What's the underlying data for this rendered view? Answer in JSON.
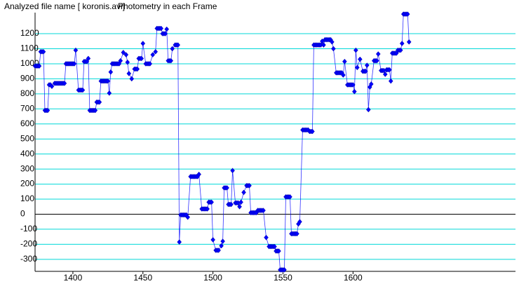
{
  "chart_data": {
    "type": "line",
    "title": "Analyzed file name [ koronis.avi]",
    "subtitle": "Photometry in each Frame",
    "color": "#0000ff",
    "grid": true,
    "xlim": [
      1373,
      1716
    ],
    "xticks": [
      1400,
      1450,
      1500,
      1550,
      1600
    ],
    "ylim": [
      -380,
      1340
    ],
    "yticks": [
      -300,
      -200,
      -100,
      0,
      100,
      200,
      300,
      400,
      500,
      600,
      700,
      800,
      900,
      1000,
      1100,
      1200
    ],
    "x": [
      1373,
      1374,
      1375,
      1376,
      1377,
      1378,
      1379,
      1380,
      1381,
      1382,
      1383,
      1384,
      1385,
      1387,
      1388,
      1389,
      1390,
      1391,
      1392,
      1393,
      1394,
      1395,
      1396,
      1397,
      1398,
      1399,
      1400,
      1401,
      1402,
      1404,
      1405,
      1406,
      1407,
      1408,
      1409,
      1410,
      1411,
      1412,
      1413,
      1414,
      1415,
      1416,
      1417,
      1418,
      1419,
      1420,
      1421,
      1422,
      1423,
      1424,
      1425,
      1426,
      1427,
      1428,
      1429,
      1430,
      1431,
      1432,
      1433,
      1434,
      1436,
      1438,
      1439,
      1440,
      1442,
      1444,
      1445,
      1446,
      1447,
      1448,
      1449,
      1450,
      1452,
      1453,
      1454,
      1455,
      1457,
      1459,
      1460,
      1461,
      1462,
      1463,
      1464,
      1465,
      1466,
      1467,
      1468,
      1469,
      1470,
      1471,
      1473,
      1474,
      1475,
      1476,
      1477,
      1478,
      1479,
      1480,
      1481,
      1482,
      1484,
      1485,
      1486,
      1487,
      1488,
      1489,
      1490,
      1492,
      1493,
      1494,
      1495,
      1496,
      1497,
      1498,
      1499,
      1500,
      1502,
      1503,
      1504,
      1506,
      1507,
      1508,
      1509,
      1510,
      1511,
      1512,
      1513,
      1514,
      1516,
      1517,
      1518,
      1519,
      1520,
      1522,
      1524,
      1525,
      1526,
      1527,
      1528,
      1529,
      1530,
      1531,
      1532,
      1533,
      1534,
      1535,
      1536,
      1538,
      1540,
      1541,
      1542,
      1543,
      1544,
      1545,
      1546,
      1547,
      1548,
      1549,
      1550,
      1551,
      1552,
      1553,
      1554,
      1555,
      1556,
      1557,
      1558,
      1559,
      1560,
      1561,
      1562,
      1564,
      1565,
      1566,
      1567,
      1568,
      1569,
      1570,
      1571,
      1572,
      1573,
      1574,
      1575,
      1576,
      1577,
      1578,
      1579,
      1580,
      1581,
      1582,
      1583,
      1584,
      1585,
      1586,
      1588,
      1589,
      1590,
      1591,
      1592,
      1593,
      1594,
      1596,
      1597,
      1598,
      1599,
      1600,
      1601,
      1602,
      1603,
      1605,
      1607,
      1608,
      1609,
      1610,
      1611,
      1612,
      1613,
      1615,
      1616,
      1617,
      1618,
      1620,
      1621,
      1622,
      1623,
      1624,
      1625,
      1626,
      1627,
      1628,
      1629,
      1630,
      1631,
      1632,
      1633,
      1634,
      1635,
      1636,
      1637,
      1638,
      1639,
      1640
    ],
    "values": [
      985,
      985,
      985,
      985,
      1080,
      1080,
      1080,
      690,
      690,
      690,
      860,
      860,
      850,
      870,
      870,
      870,
      870,
      870,
      870,
      870,
      870,
      1000,
      1000,
      1000,
      1000,
      1000,
      1000,
      1000,
      1090,
      825,
      825,
      825,
      825,
      1015,
      1015,
      1015,
      1035,
      690,
      690,
      690,
      690,
      690,
      745,
      745,
      745,
      885,
      885,
      885,
      885,
      885,
      885,
      805,
      945,
      1000,
      1000,
      1000,
      1000,
      1000,
      1000,
      1020,
      1075,
      1060,
      1010,
      935,
      900,
      965,
      965,
      965,
      1035,
      1035,
      1035,
      1135,
      1000,
      1000,
      1000,
      1000,
      1060,
      1080,
      1235,
      1235,
      1235,
      1235,
      1200,
      1200,
      1200,
      1230,
      1020,
      1020,
      1020,
      1100,
      1125,
      1125,
      1125,
      -185,
      -5,
      -5,
      -5,
      -5,
      -5,
      -20,
      250,
      250,
      250,
      250,
      250,
      250,
      265,
      35,
      35,
      35,
      35,
      35,
      80,
      80,
      80,
      -170,
      -240,
      -240,
      -240,
      -210,
      -180,
      175,
      175,
      175,
      65,
      65,
      65,
      290,
      75,
      75,
      75,
      50,
      80,
      145,
      190,
      190,
      190,
      10,
      10,
      10,
      10,
      10,
      25,
      25,
      25,
      25,
      25,
      -155,
      -215,
      -215,
      -215,
      -215,
      -215,
      -245,
      -245,
      -245,
      -370,
      -370,
      -370,
      -370,
      115,
      115,
      115,
      115,
      -130,
      -130,
      -130,
      -130,
      -130,
      -65,
      -50,
      560,
      560,
      560,
      560,
      560,
      550,
      550,
      550,
      1125,
      1125,
      1125,
      1125,
      1125,
      1125,
      1150,
      1125,
      1160,
      1160,
      1160,
      1160,
      1160,
      1145,
      1100,
      940,
      940,
      940,
      940,
      940,
      925,
      1015,
      860,
      860,
      860,
      860,
      860,
      815,
      1090,
      975,
      1030,
      950,
      950,
      950,
      990,
      695,
      845,
      865,
      1020,
      1020,
      1020,
      1065,
      955,
      955,
      955,
      930,
      960,
      960,
      960,
      885,
      1070,
      1070,
      1070,
      1070,
      1090,
      1090,
      1090,
      1135,
      1330,
      1330,
      1330,
      1330,
      1145
    ]
  }
}
